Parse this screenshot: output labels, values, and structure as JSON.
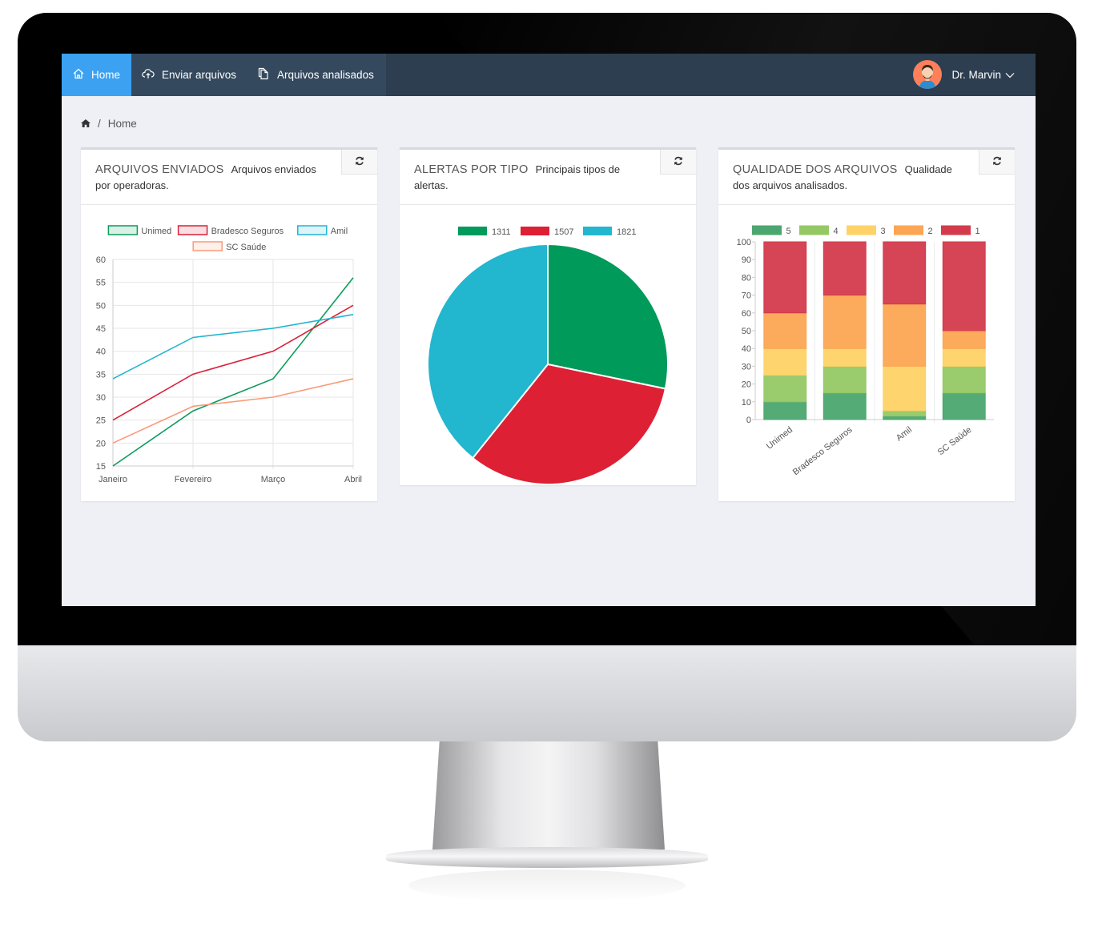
{
  "nav": {
    "items": [
      {
        "label": "Home",
        "icon": "home-icon",
        "active": true
      },
      {
        "label": "Enviar arquivos",
        "icon": "cloud-upload-icon",
        "active": false
      },
      {
        "label": "Arquivos analisados",
        "icon": "files-icon",
        "active": false
      }
    ],
    "user_name": "Dr. Marvin",
    "colors": {
      "bar": "#2c3e50",
      "active": "#3ba1f0"
    }
  },
  "breadcrumb": {
    "current": "Home",
    "separator": "/"
  },
  "panels": [
    {
      "title": "ARQUIVOS ENVIADOS",
      "subtitle": "Arquivos enviados por operadoras."
    },
    {
      "title": "ALERTAS POR TIPO",
      "subtitle": "Principais tipos de alertas."
    },
    {
      "title": "QUALIDADE DOS ARQUIVOS",
      "subtitle": "Qualidade dos arquivos analisados."
    }
  ],
  "chart_data": [
    {
      "type": "line",
      "categories": [
        "Janeiro",
        "Fevereiro",
        "Março",
        "Abril"
      ],
      "ylim": [
        15,
        60
      ],
      "yticks": [
        15,
        20,
        25,
        30,
        35,
        40,
        45,
        50,
        55,
        60
      ],
      "grid": true,
      "legend": "top",
      "series": [
        {
          "name": "Unimed",
          "values": [
            15,
            27,
            34,
            56
          ],
          "color": "#0d9b5b"
        },
        {
          "name": "Bradesco Seguros",
          "values": [
            25,
            35,
            40,
            50
          ],
          "color": "#d9213a"
        },
        {
          "name": "Amil",
          "values": [
            34,
            43,
            45,
            48
          ],
          "color": "#21b5cf"
        },
        {
          "name": "SC Saúde",
          "values": [
            20,
            28,
            30,
            34
          ],
          "color": "#fa9a78"
        }
      ]
    },
    {
      "type": "pie",
      "legend": "top",
      "slices": [
        {
          "label": "1311",
          "value": 1311,
          "color": "#009a5b"
        },
        {
          "label": "1507",
          "value": 1507,
          "color": "#dd2033"
        },
        {
          "label": "1821",
          "value": 1821,
          "color": "#22b6cf"
        }
      ]
    },
    {
      "type": "bar",
      "stacked": true,
      "categories": [
        "Unimed",
        "Bradesco Seguros",
        "Amil",
        "SC Saúde"
      ],
      "ylim": [
        0,
        100
      ],
      "yticks": [
        0,
        10,
        20,
        30,
        40,
        50,
        60,
        70,
        80,
        90,
        100
      ],
      "legend": "top",
      "series": [
        {
          "name": "5",
          "values": [
            10,
            15,
            2,
            15
          ],
          "color": "#4ca66f"
        },
        {
          "name": "4",
          "values": [
            15,
            15,
            3,
            15
          ],
          "color": "#95c864"
        },
        {
          "name": "3",
          "values": [
            15,
            10,
            25,
            10
          ],
          "color": "#fed267"
        },
        {
          "name": "2",
          "values": [
            20,
            30,
            35,
            10
          ],
          "color": "#fca552"
        },
        {
          "name": "1",
          "values": [
            40,
            30,
            35,
            50
          ],
          "color": "#d33b4c"
        }
      ]
    }
  ]
}
